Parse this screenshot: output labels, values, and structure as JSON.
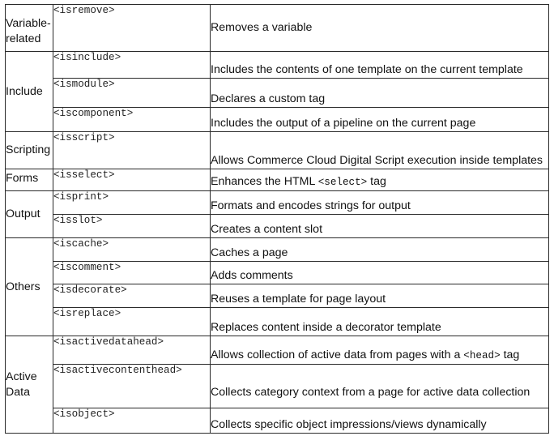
{
  "categories": {
    "variable": "Variable-related",
    "include": "Include",
    "scripting": "Scripting",
    "forms": "Forms",
    "output": "Output",
    "others": "Others",
    "active_data": "Active Data"
  },
  "rows": [
    {
      "tag": "<isremove>",
      "desc": "Removes a variable"
    },
    {
      "tag": "<isinclude>",
      "desc": "Includes the contents of one template on the current template"
    },
    {
      "tag": "<ismodule>",
      "desc": "Declares a custom tag"
    },
    {
      "tag": "<iscomponent>",
      "desc": "Includes the output of a pipeline on the current page"
    },
    {
      "tag": "<isscript>",
      "desc": "Allows Commerce Cloud Digital Script execution inside templates"
    },
    {
      "tag": "<isselect>",
      "desc_pre": "Enhances the HTML ",
      "desc_code": "<select>",
      "desc_post": " tag"
    },
    {
      "tag": "<isprint>",
      "desc": "Formats and encodes strings for output"
    },
    {
      "tag": "<isslot>",
      "desc": "Creates a content slot"
    },
    {
      "tag": "<iscache>",
      "desc": "Caches a page"
    },
    {
      "tag": "<iscomment>",
      "desc": "Adds comments"
    },
    {
      "tag": "<isdecorate>",
      "desc": "Reuses a template for page layout"
    },
    {
      "tag": "<isreplace>",
      "desc": "Replaces content inside a decorator template"
    },
    {
      "tag": "<isactivedatahead>",
      "desc_pre": "Allows collection of active data from pages with a ",
      "desc_code": "<head>",
      "desc_post": "  tag"
    },
    {
      "tag": "<isactivecontenthead>",
      "desc": "Collects category context from a page for active data collection"
    },
    {
      "tag": "<isobject>",
      "desc": "Collects specific object impressions/views dynamically"
    }
  ]
}
